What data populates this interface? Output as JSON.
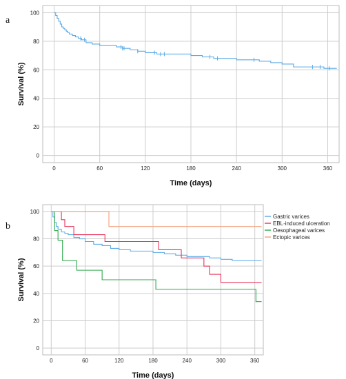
{
  "chart_data": [
    {
      "panel_label": "a",
      "type": "line",
      "step": true,
      "xlabel": "Time (days)",
      "ylabel": "Survival (%)",
      "xlim": [
        -15,
        375
      ],
      "ylim": [
        -5,
        105
      ],
      "xticks": [
        0,
        60,
        120,
        180,
        240,
        300,
        360
      ],
      "yticks": [
        0,
        20,
        40,
        60,
        80,
        100
      ],
      "grid": true,
      "series": [
        {
          "name": "",
          "color": "#5aa9e6",
          "x": [
            0,
            2,
            4,
            6,
            8,
            10,
            12,
            14,
            16,
            18,
            20,
            24,
            28,
            32,
            36,
            42,
            50,
            60,
            70,
            82,
            90,
            100,
            110,
            120,
            135,
            150,
            165,
            180,
            195,
            210,
            225,
            240,
            255,
            270,
            285,
            300,
            315,
            335,
            355,
            365,
            372
          ],
          "y": [
            100,
            98,
            96,
            94,
            92,
            90,
            89,
            88,
            87,
            86,
            85,
            84,
            83,
            82,
            81,
            79,
            78,
            77,
            77,
            76,
            75,
            74,
            73,
            72,
            71,
            71,
            71,
            70,
            69,
            68,
            68,
            67,
            67,
            66,
            65,
            64,
            62,
            62,
            61,
            61,
            61
          ],
          "censor_x": [
            35,
            40,
            88,
            90,
            92,
            110,
            132,
            140,
            145,
            205,
            215,
            263,
            340,
            350,
            362
          ]
        }
      ]
    },
    {
      "panel_label": "b",
      "type": "line",
      "step": true,
      "xlabel": "Time (days)",
      "ylabel": "Survival (%)",
      "xlim": [
        -15,
        375
      ],
      "ylim": [
        -5,
        105
      ],
      "xticks": [
        0,
        60,
        120,
        180,
        240,
        300,
        360
      ],
      "yticks": [
        0,
        20,
        40,
        60,
        80,
        100
      ],
      "grid": true,
      "legend_position": "right",
      "series": [
        {
          "name": "Gastric varices",
          "color": "#5aa9e6",
          "x": [
            0,
            3,
            6,
            9,
            12,
            18,
            24,
            30,
            40,
            50,
            60,
            75,
            90,
            105,
            120,
            140,
            160,
            180,
            200,
            220,
            240,
            260,
            280,
            300,
            320,
            340,
            372
          ],
          "y": [
            100,
            96,
            92,
            89,
            87,
            85,
            84,
            83,
            81,
            80,
            78,
            76,
            75,
            73,
            72,
            71,
            71,
            70,
            69,
            68,
            67,
            67,
            66,
            65,
            64,
            64,
            64
          ]
        },
        {
          "name": "EBL-induced ulceration",
          "color": "#e8325a",
          "x": [
            0,
            18,
            24,
            40,
            95,
            190,
            230,
            270,
            280,
            300,
            372
          ],
          "y": [
            100,
            94,
            89,
            83,
            78,
            72,
            66,
            60,
            54,
            48,
            48
          ]
        },
        {
          "name": "Oesophageal varices",
          "color": "#2ca84a",
          "x": [
            0,
            6,
            12,
            20,
            45,
            90,
            185,
            362,
            372
          ],
          "y": [
            100,
            86,
            79,
            64,
            57,
            50,
            43,
            34,
            34
          ]
        },
        {
          "name": "Ectopic varices",
          "color": "#f5a07a",
          "x": [
            0,
            102,
            372
          ],
          "y": [
            100,
            89,
            89
          ]
        }
      ]
    }
  ]
}
